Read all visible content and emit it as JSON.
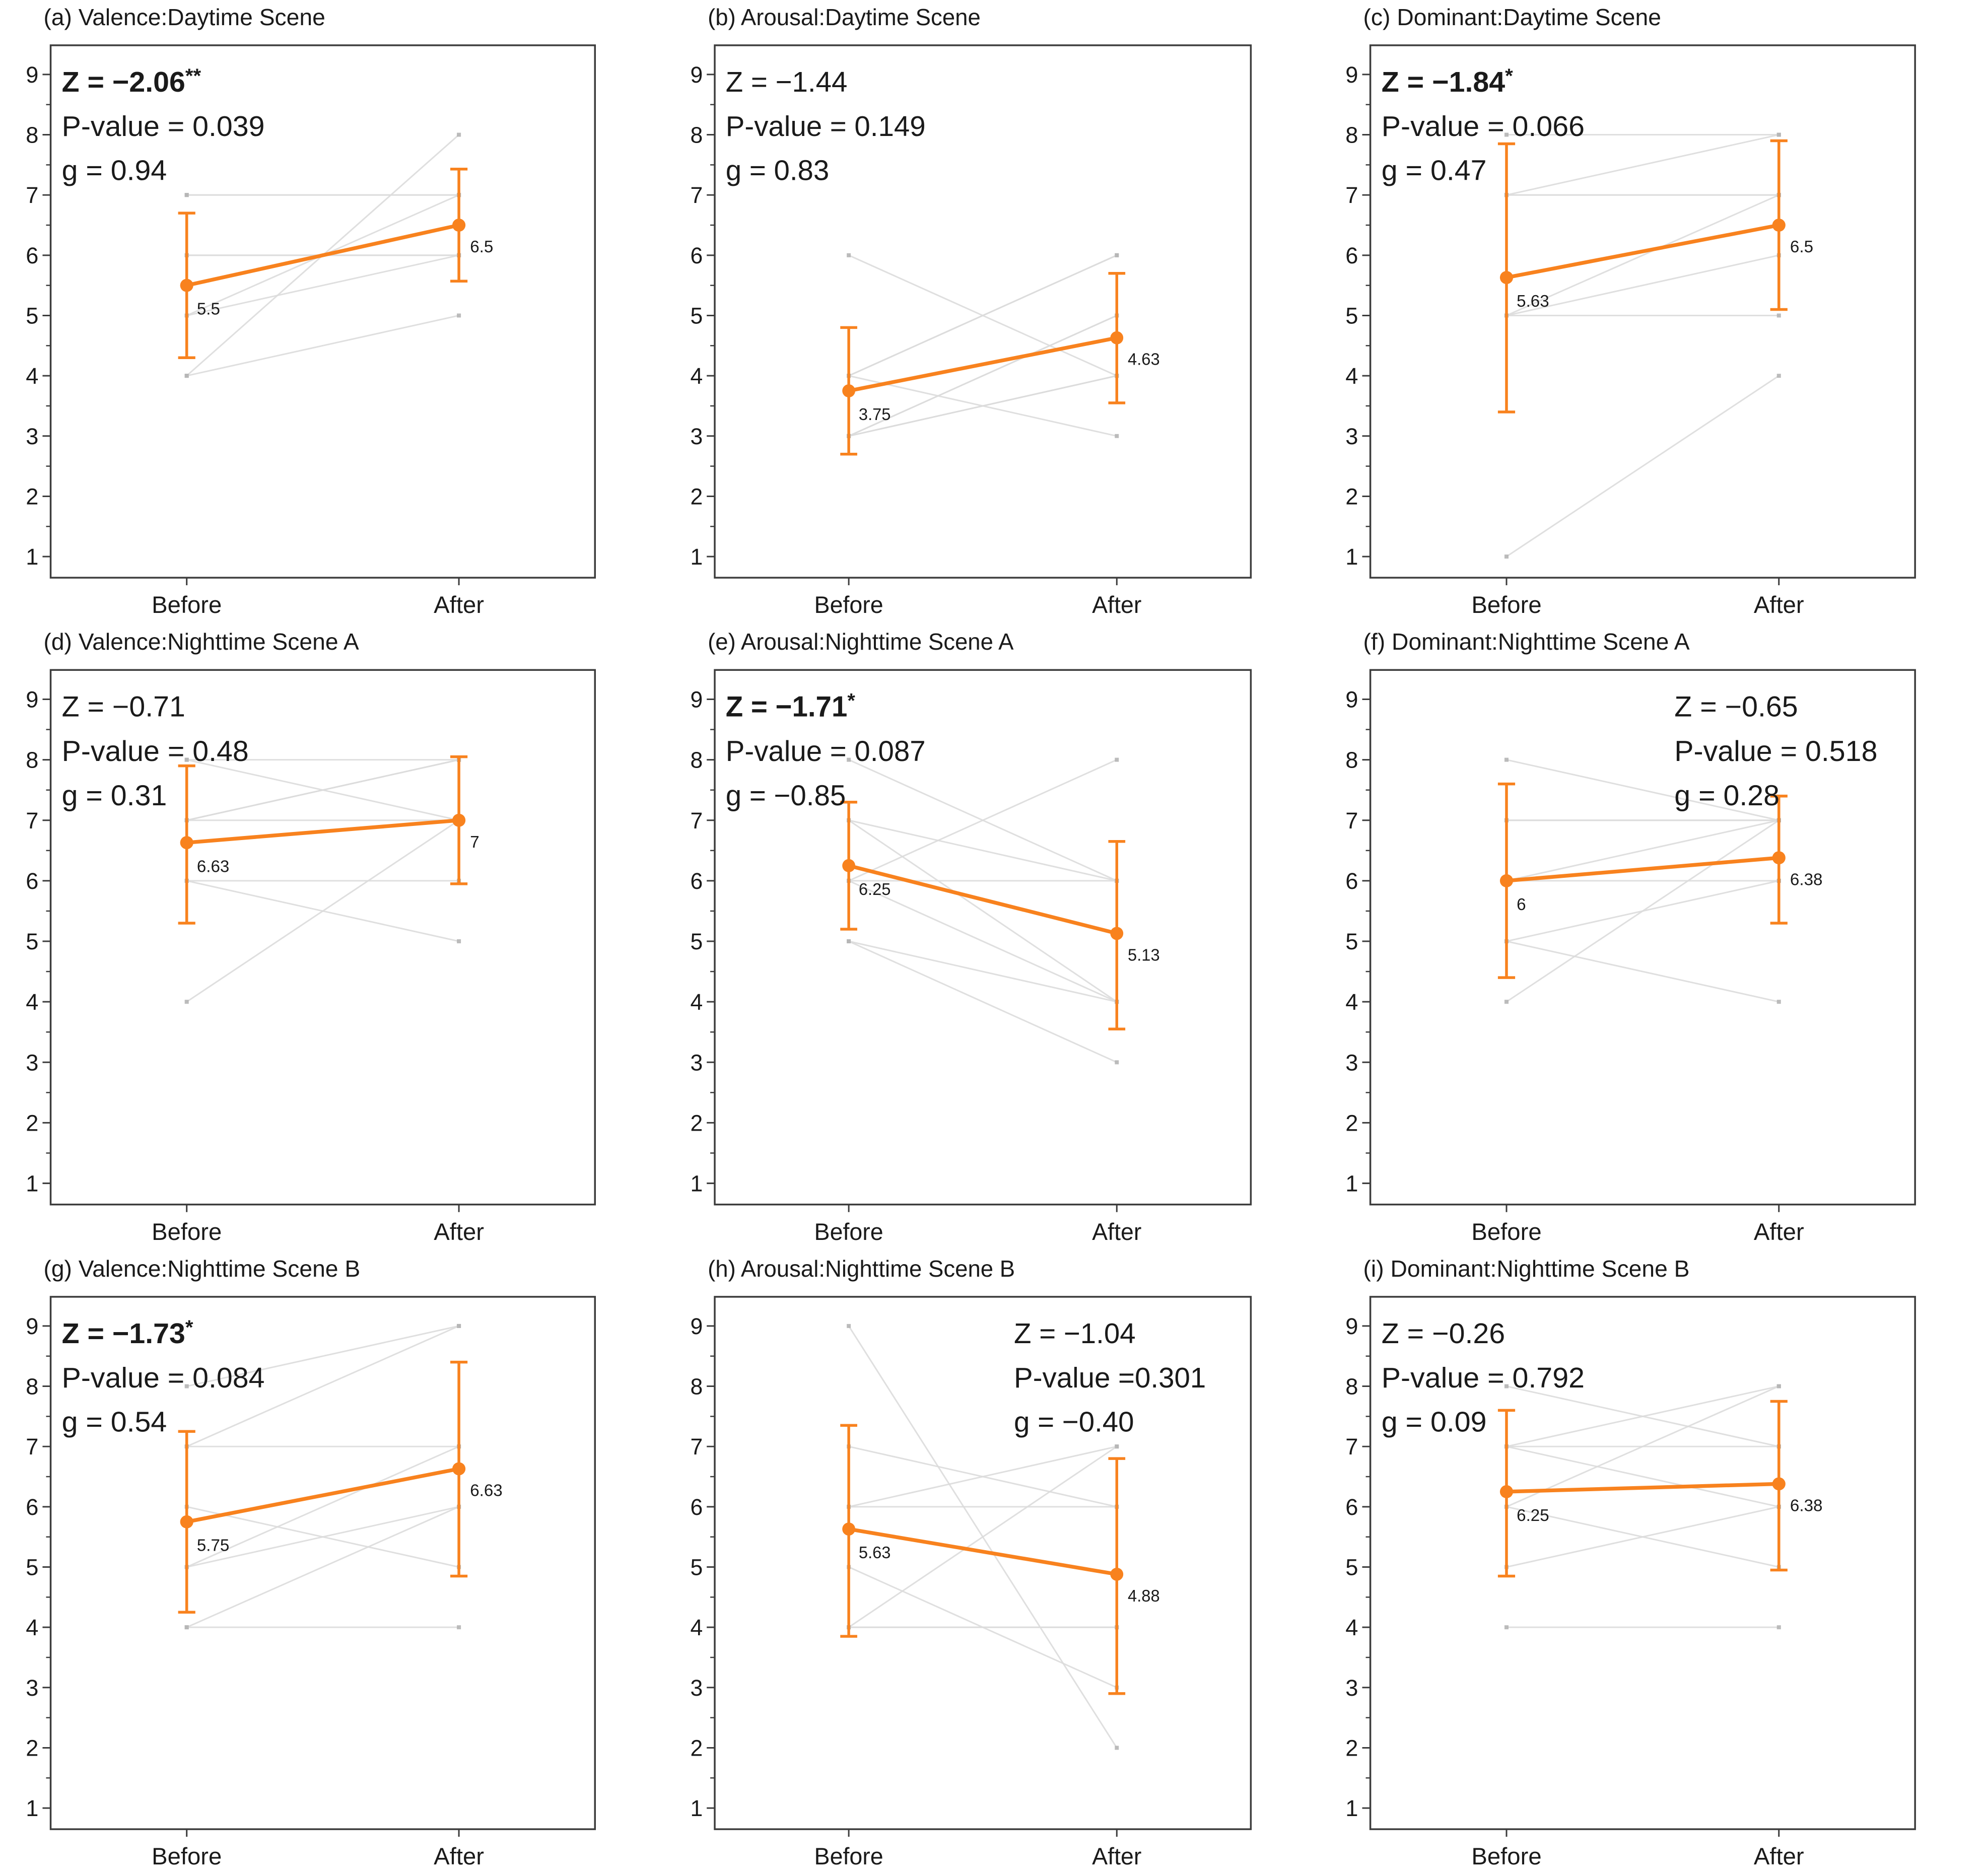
{
  "figure": {
    "x_categories": [
      "Before",
      "After"
    ],
    "y_ticks": [
      "1",
      "2",
      "3",
      "4",
      "5",
      "6",
      "7",
      "8",
      "9"
    ],
    "ylim": [
      0.6,
      9.45
    ],
    "colors": {
      "mean_series": "#F8821E",
      "individual_line": "#dcdcdc",
      "individual_marker": "#b5b5b5",
      "axis": "#3c3c3c",
      "text": "#1a1a1a"
    }
  },
  "chart_data": [
    {
      "id": "a",
      "type": "line",
      "title": "(a) Valence:Daytime Scene",
      "stats": {
        "z_label": "Z = −2.06",
        "stars": "**",
        "bold": true,
        "p_label": "P-value = 0.039",
        "g_label": "g = 0.94",
        "position": "top-left"
      },
      "categories": [
        "Before",
        "After"
      ],
      "mean": {
        "before": 5.5,
        "after": 6.5
      },
      "mean_labels": {
        "before": "5.5",
        "after": "6.5"
      },
      "error_bars": {
        "before": [
          4.3,
          6.7
        ],
        "after": [
          5.57,
          7.43
        ]
      },
      "individual_pairs": [
        [
          7,
          7
        ],
        [
          7,
          7
        ],
        [
          6,
          6
        ],
        [
          6,
          6
        ],
        [
          5,
          7
        ],
        [
          4,
          8
        ],
        [
          4,
          5
        ],
        [
          5,
          6
        ]
      ]
    },
    {
      "id": "b",
      "type": "line",
      "title": "(b) Arousal:Daytime Scene",
      "stats": {
        "z_label": "Z = −1.44",
        "stars": "",
        "bold": false,
        "p_label": "P-value = 0.149",
        "g_label": "g = 0.83",
        "position": "top-left"
      },
      "categories": [
        "Before",
        "After"
      ],
      "mean": {
        "before": 3.75,
        "after": 4.63
      },
      "mean_labels": {
        "before": "3.75",
        "after": "4.63"
      },
      "error_bars": {
        "before": [
          2.7,
          4.8
        ],
        "after": [
          3.55,
          5.7
        ]
      },
      "individual_pairs": [
        [
          6,
          4
        ],
        [
          4,
          6
        ],
        [
          4,
          6
        ],
        [
          4,
          3
        ],
        [
          3,
          5
        ],
        [
          3,
          4
        ],
        [
          3,
          5
        ],
        [
          3,
          4
        ]
      ]
    },
    {
      "id": "c",
      "type": "line",
      "title": "(c) Dominant:Daytime Scene",
      "stats": {
        "z_label": "Z = −1.84",
        "stars": "*",
        "bold": true,
        "p_label": "P-value = 0.066",
        "g_label": "g = 0.47",
        "position": "top-left"
      },
      "categories": [
        "Before",
        "After"
      ],
      "mean": {
        "before": 5.63,
        "after": 6.5
      },
      "mean_labels": {
        "before": "5.63",
        "after": "6.5"
      },
      "error_bars": {
        "before": [
          3.4,
          7.85
        ],
        "after": [
          5.1,
          7.9
        ]
      },
      "individual_pairs": [
        [
          8,
          8
        ],
        [
          7,
          8
        ],
        [
          7,
          7
        ],
        [
          5,
          7
        ],
        [
          5,
          6
        ],
        [
          5,
          5
        ],
        [
          1,
          4
        ],
        [
          7,
          7
        ]
      ]
    },
    {
      "id": "d",
      "type": "line",
      "title": "(d) Valence:Nighttime Scene A",
      "stats": {
        "z_label": "Z = −0.71",
        "stars": "",
        "bold": false,
        "p_label": "P-value = 0.48",
        "g_label": "g = 0.31",
        "position": "top-left"
      },
      "categories": [
        "Before",
        "After"
      ],
      "mean": {
        "before": 6.63,
        "after": 7.0
      },
      "mean_labels": {
        "before": "6.63",
        "after": "7"
      },
      "error_bars": {
        "before": [
          5.3,
          7.9
        ],
        "after": [
          5.95,
          8.05
        ]
      },
      "individual_pairs": [
        [
          8,
          8
        ],
        [
          8,
          7
        ],
        [
          7,
          8
        ],
        [
          7,
          7
        ],
        [
          6,
          6
        ],
        [
          6,
          5
        ],
        [
          4,
          7
        ],
        [
          7,
          8
        ]
      ]
    },
    {
      "id": "e",
      "type": "line",
      "title": "(e) Arousal:Nighttime Scene A",
      "stats": {
        "z_label": "Z = −1.71",
        "stars": "*",
        "bold": true,
        "p_label": "P-value = 0.087",
        "g_label": "g = −0.85",
        "position": "top-left"
      },
      "categories": [
        "Before",
        "After"
      ],
      "mean": {
        "before": 6.25,
        "after": 5.13
      },
      "mean_labels": {
        "before": "6.25",
        "after": "5.13"
      },
      "error_bars": {
        "before": [
          5.2,
          7.3
        ],
        "after": [
          3.55,
          6.65
        ]
      },
      "individual_pairs": [
        [
          8,
          6
        ],
        [
          6,
          8
        ],
        [
          7,
          6
        ],
        [
          7,
          4
        ],
        [
          6,
          4
        ],
        [
          5,
          3
        ],
        [
          6,
          6
        ],
        [
          5,
          4
        ]
      ]
    },
    {
      "id": "f",
      "type": "line",
      "title": "(f) Dominant:Nighttime Scene A",
      "stats": {
        "z_label": "Z = −0.65",
        "stars": "",
        "bold": false,
        "p_label": "P-value = 0.518",
        "g_label": "g = 0.28",
        "position": "top-right"
      },
      "categories": [
        "Before",
        "After"
      ],
      "mean": {
        "before": 6.0,
        "after": 6.38
      },
      "mean_labels": {
        "before": "6",
        "after": "6.38"
      },
      "error_bars": {
        "before": [
          4.4,
          7.6
        ],
        "after": [
          5.3,
          7.4
        ]
      },
      "individual_pairs": [
        [
          8,
          7
        ],
        [
          7,
          7
        ],
        [
          7,
          7
        ],
        [
          6,
          6
        ],
        [
          6,
          7
        ],
        [
          5,
          4
        ],
        [
          4,
          7
        ],
        [
          5,
          6
        ]
      ]
    },
    {
      "id": "g",
      "type": "line",
      "title": "(g) Valence:Nighttime Scene B",
      "stats": {
        "z_label": "Z = −1.73",
        "stars": "*",
        "bold": true,
        "p_label": "P-value = 0.084",
        "g_label": "g = 0.54",
        "position": "top-left"
      },
      "categories": [
        "Before",
        "After"
      ],
      "mean": {
        "before": 5.75,
        "after": 6.63
      },
      "mean_labels": {
        "before": "5.75",
        "after": "6.63"
      },
      "error_bars": {
        "before": [
          4.25,
          7.25
        ],
        "after": [
          4.85,
          8.4
        ]
      },
      "individual_pairs": [
        [
          8,
          9
        ],
        [
          7,
          9
        ],
        [
          7,
          7
        ],
        [
          6,
          5
        ],
        [
          5,
          7
        ],
        [
          4,
          6
        ],
        [
          4,
          4
        ],
        [
          5,
          6
        ]
      ]
    },
    {
      "id": "h",
      "type": "line",
      "title": "(h) Arousal:Nighttime Scene B",
      "stats": {
        "z_label": "Z = −1.04",
        "stars": "",
        "bold": false,
        "p_label": "P-value =0.301",
        "g_label": "g = −0.40",
        "position": "top-right"
      },
      "categories": [
        "Before",
        "After"
      ],
      "mean": {
        "before": 5.63,
        "after": 4.88
      },
      "mean_labels": {
        "before": "5.63",
        "after": "4.88"
      },
      "error_bars": {
        "before": [
          3.85,
          7.35
        ],
        "after": [
          2.9,
          6.8
        ]
      },
      "individual_pairs": [
        [
          9,
          2
        ],
        [
          7,
          6
        ],
        [
          6,
          7
        ],
        [
          6,
          6
        ],
        [
          5,
          3
        ],
        [
          4,
          7
        ],
        [
          4,
          4
        ],
        [
          4,
          4
        ]
      ]
    },
    {
      "id": "i",
      "type": "line",
      "title": "(i) Dominant:Nighttime Scene B",
      "stats": {
        "z_label": "Z = −0.26",
        "stars": "",
        "bold": false,
        "p_label": "P-value = 0.792",
        "g_label": "g = 0.09",
        "position": "top-left"
      },
      "categories": [
        "Before",
        "After"
      ],
      "mean": {
        "before": 6.25,
        "after": 6.38
      },
      "mean_labels": {
        "before": "6.25",
        "after": "6.38"
      },
      "error_bars": {
        "before": [
          4.85,
          7.6
        ],
        "after": [
          4.95,
          7.75
        ]
      },
      "individual_pairs": [
        [
          8,
          7
        ],
        [
          7,
          8
        ],
        [
          6,
          8
        ],
        [
          5,
          6
        ],
        [
          6,
          5
        ],
        [
          4,
          4
        ],
        [
          7,
          7
        ],
        [
          7,
          6
        ]
      ]
    }
  ]
}
